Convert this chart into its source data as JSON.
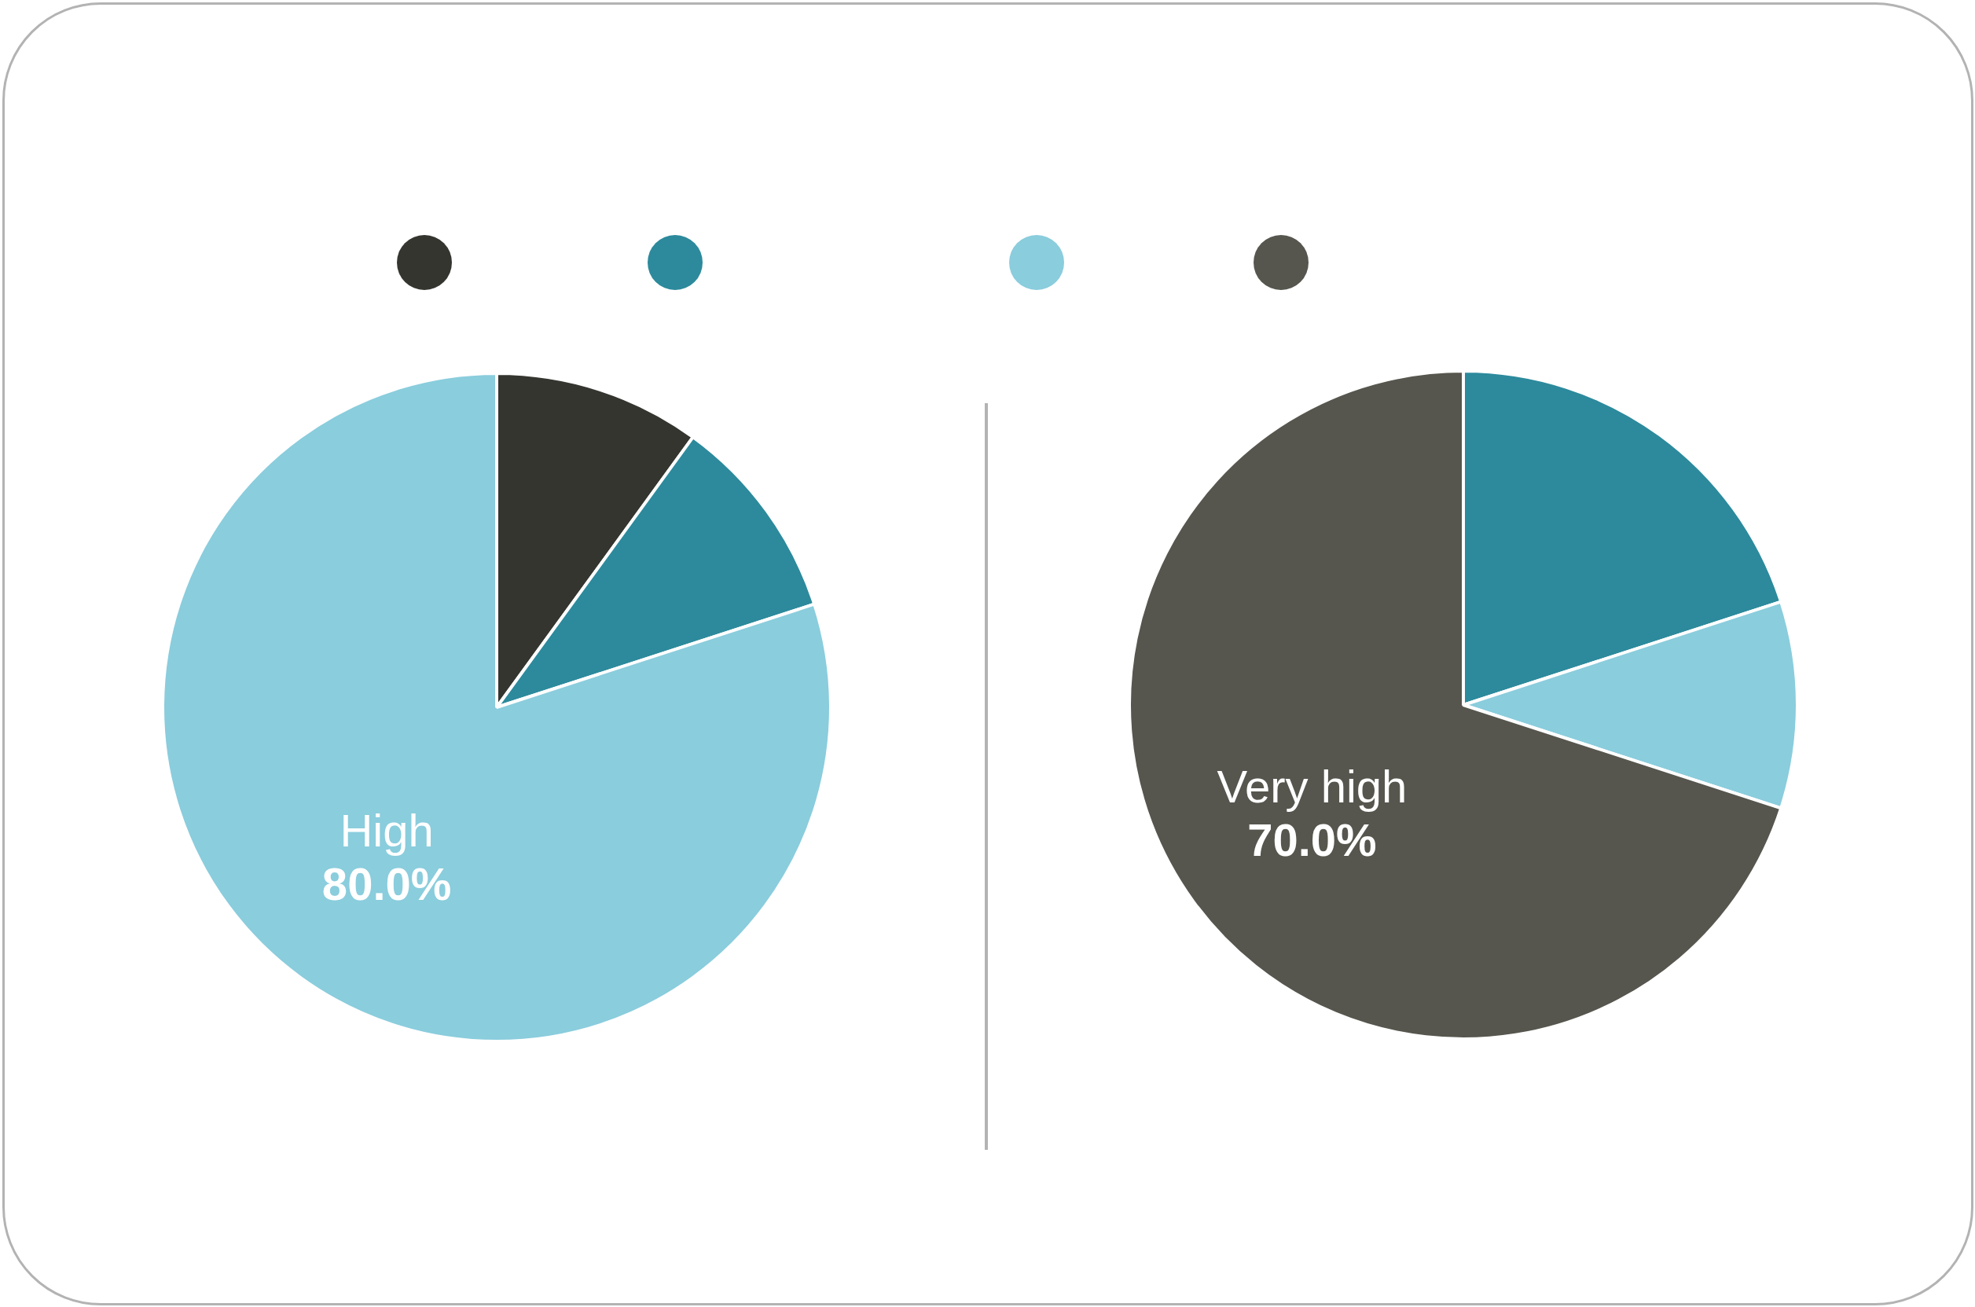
{
  "chart_data": [
    {
      "type": "pie",
      "categories": [
        null,
        null,
        "High"
      ],
      "values": [
        10,
        10,
        80
      ],
      "colors": [
        "#353530",
        "#2c8a9c",
        "#8acddd"
      ],
      "value_labels": [
        null,
        null,
        "80.0%"
      ]
    },
    {
      "type": "pie",
      "categories": [
        null,
        null,
        "Very high"
      ],
      "values": [
        20,
        10,
        70
      ],
      "colors": [
        "#2c8a9c",
        "#8acddd",
        "#56564e"
      ],
      "value_labels": [
        null,
        null,
        "70.0%"
      ]
    }
  ]
}
